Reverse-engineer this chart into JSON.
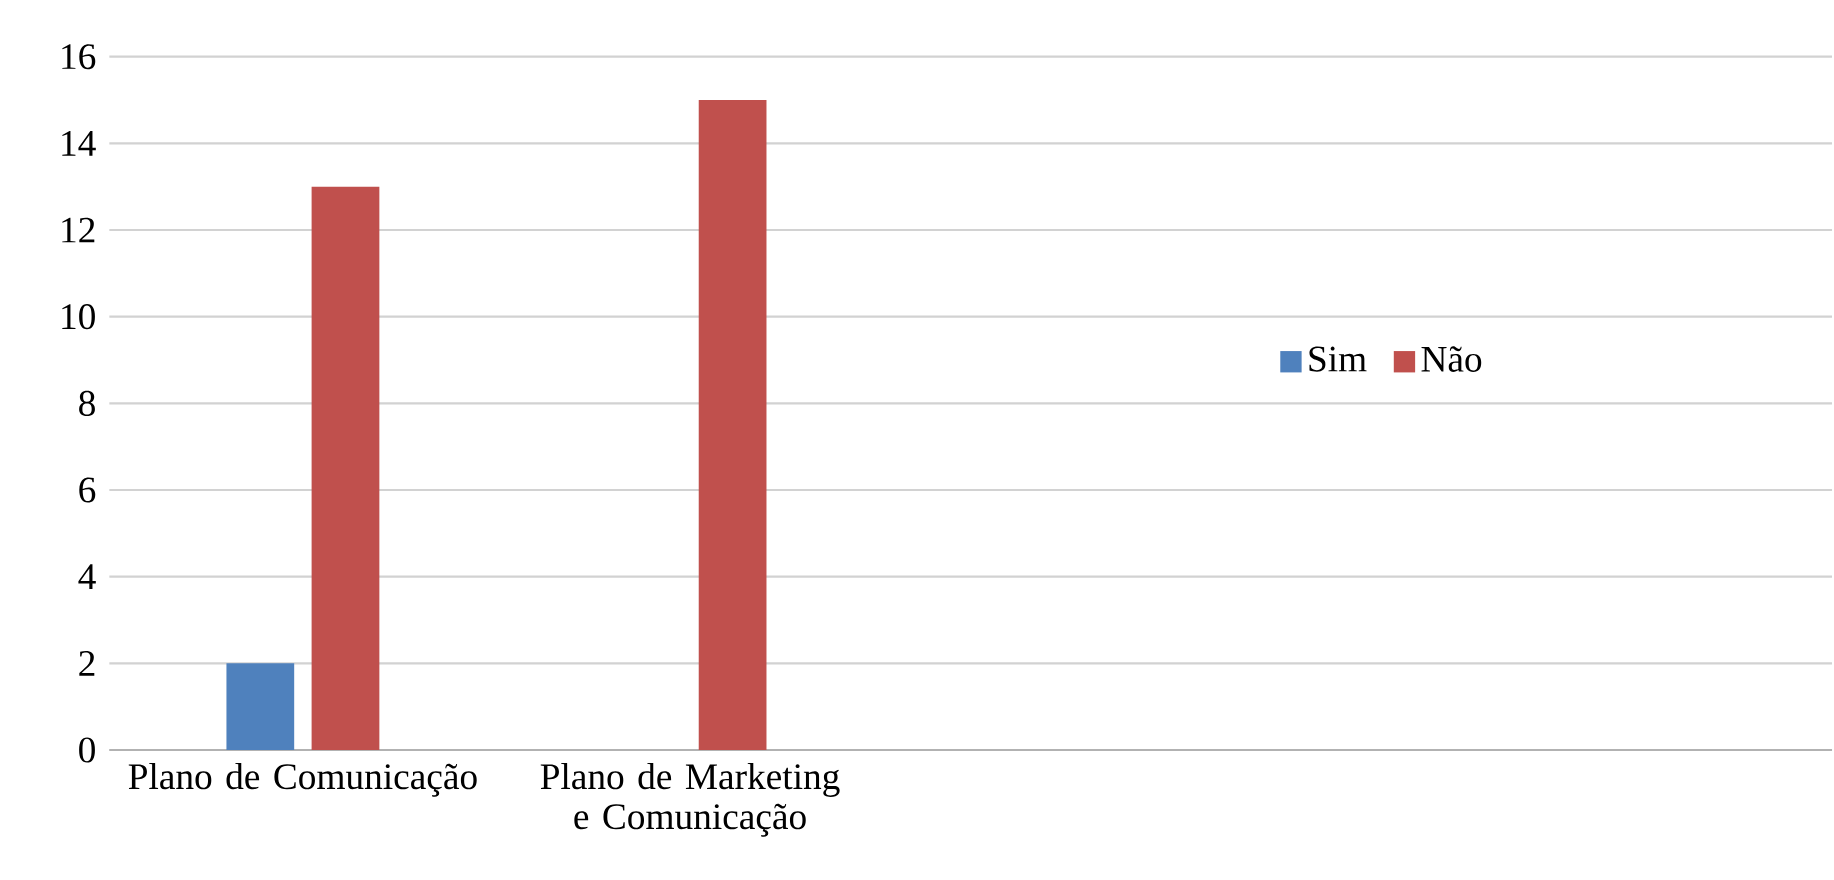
{
  "chart_data": {
    "type": "bar",
    "categories": [
      "Plano de Comunicação",
      "Plano de Marketing e Comunicação",
      null,
      null
    ],
    "series": [
      {
        "name": "Sim",
        "color": "#4f81bd",
        "values": [
          2,
          0,
          null,
          null
        ]
      },
      {
        "name": "Não",
        "color": "#c0504d",
        "values": [
          13,
          15,
          null,
          null
        ]
      }
    ],
    "ylim": [
      0,
      16
    ],
    "yticks": [
      0,
      2,
      4,
      6,
      8,
      10,
      12,
      14,
      16
    ],
    "grid": "y",
    "legend": "right"
  }
}
